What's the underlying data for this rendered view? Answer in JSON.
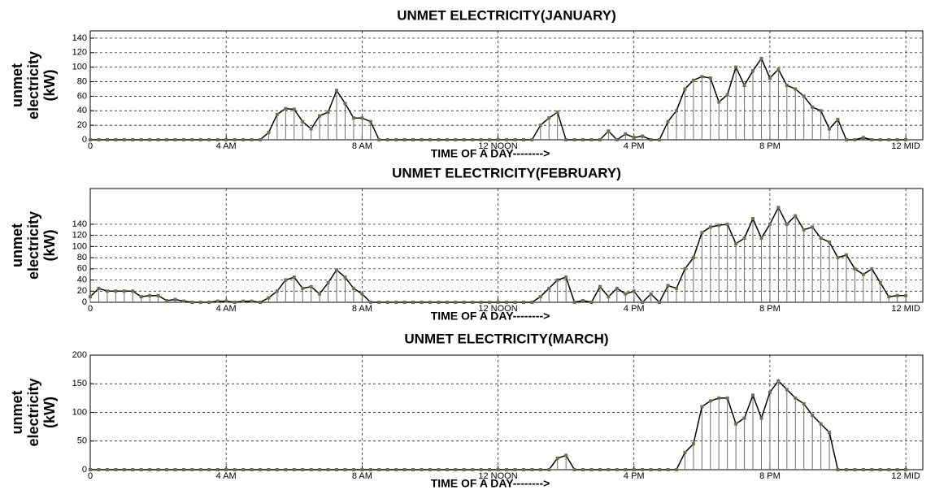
{
  "chart_data": [
    {
      "type": "stem",
      "title": "UNMET ELECTRICITY(JANUARY)",
      "xlabel": "TIME OF A DAY-------->",
      "ylabel": [
        "unmet",
        "electricity",
        "(kW)"
      ],
      "x": [
        0,
        0.25,
        0.5,
        0.75,
        1,
        1.25,
        1.5,
        1.75,
        2,
        2.25,
        2.5,
        2.75,
        3,
        3.25,
        3.5,
        3.75,
        4,
        4.25,
        4.5,
        4.75,
        5,
        5.25,
        5.5,
        5.75,
        6,
        6.25,
        6.5,
        6.75,
        7,
        7.25,
        7.5,
        7.75,
        8,
        8.25,
        8.5,
        8.75,
        9,
        9.25,
        9.5,
        9.75,
        10,
        10.25,
        10.5,
        10.75,
        11,
        11.25,
        11.5,
        11.75,
        12,
        12.25,
        12.5,
        12.75,
        13,
        13.25,
        13.5,
        13.75,
        14,
        14.25,
        14.5,
        14.75,
        15,
        15.25,
        15.5,
        15.75,
        16,
        16.25,
        16.5,
        16.75,
        17,
        17.25,
        17.5,
        17.75,
        18,
        18.25,
        18.5,
        18.75,
        19,
        19.25,
        19.5,
        19.75,
        20,
        20.25,
        20.5,
        20.75,
        21,
        21.25,
        21.5,
        21.75,
        22,
        22.25,
        22.5,
        22.75,
        23,
        23.25,
        23.5,
        23.75,
        24
      ],
      "values": [
        0,
        0,
        0,
        0,
        0,
        0,
        0,
        0,
        0,
        0,
        0,
        0,
        0,
        0,
        0,
        0,
        0,
        0,
        0,
        0,
        0,
        10,
        35,
        43,
        42,
        25,
        15,
        33,
        38,
        68,
        50,
        30,
        30,
        25,
        0,
        0,
        0,
        0,
        0,
        0,
        0,
        0,
        0,
        0,
        0,
        0,
        0,
        0,
        0,
        0,
        0,
        0,
        0,
        20,
        30,
        38,
        0,
        0,
        0,
        0,
        0,
        12,
        0,
        8,
        3,
        5,
        0,
        0,
        25,
        40,
        70,
        82,
        87,
        85,
        52,
        62,
        100,
        75,
        95,
        112,
        85,
        97,
        75,
        70,
        60,
        45,
        40,
        15,
        28,
        0,
        0,
        3,
        0,
        0,
        0,
        0,
        0
      ],
      "color": "#000000",
      "marker_color": "#6e6e50",
      "stem_color": "#6e6e6e",
      "xlim": [
        0,
        24.5
      ],
      "xticks": [
        0,
        {
          "value": 4,
          "label": "4 AM"
        },
        {
          "value": 8,
          "label": "8 AM"
        },
        {
          "value": 12,
          "label": "12 NOON"
        },
        {
          "value": 16,
          "label": "4 PM"
        },
        {
          "value": 20,
          "label": "8 PM"
        },
        {
          "value": 24,
          "label": "12 MID"
        }
      ],
      "ylim": [
        0,
        150
      ],
      "yticks": [
        0,
        20,
        40,
        60,
        80,
        100,
        120,
        140
      ],
      "grid": true
    },
    {
      "type": "stem",
      "title": "UNMET ELECTRICITY(FEBRUARY)",
      "xlabel": "TIME OF A DAY-------->",
      "ylabel": [
        "unmet",
        "electricity",
        "(kW)"
      ],
      "x": [
        0,
        0.25,
        0.5,
        0.75,
        1,
        1.25,
        1.5,
        1.75,
        2,
        2.25,
        2.5,
        2.75,
        3,
        3.25,
        3.5,
        3.75,
        4,
        4.25,
        4.5,
        4.75,
        5,
        5.25,
        5.5,
        5.75,
        6,
        6.25,
        6.5,
        6.75,
        7,
        7.25,
        7.5,
        7.75,
        8,
        8.25,
        8.5,
        8.75,
        9,
        9.25,
        9.5,
        9.75,
        10,
        10.25,
        10.5,
        10.75,
        11,
        11.25,
        11.5,
        11.75,
        12,
        12.25,
        12.5,
        12.75,
        13,
        13.25,
        13.5,
        13.75,
        14,
        14.25,
        14.5,
        14.75,
        15,
        15.25,
        15.5,
        15.75,
        16,
        16.25,
        16.5,
        16.75,
        17,
        17.25,
        17.5,
        17.75,
        18,
        18.25,
        18.5,
        18.75,
        19,
        19.25,
        19.5,
        19.75,
        20,
        20.25,
        20.5,
        20.75,
        21,
        21.25,
        21.5,
        21.75,
        22,
        22.25,
        22.5,
        22.75,
        23,
        23.25,
        23.5,
        23.75,
        24
      ],
      "values": [
        10,
        25,
        20,
        20,
        20,
        20,
        10,
        12,
        12,
        3,
        5,
        2,
        0,
        0,
        0,
        2,
        2,
        0,
        2,
        2,
        0,
        8,
        20,
        40,
        45,
        25,
        28,
        15,
        35,
        58,
        45,
        25,
        15,
        0,
        0,
        0,
        0,
        0,
        0,
        0,
        0,
        0,
        0,
        0,
        0,
        0,
        0,
        0,
        0,
        0,
        0,
        0,
        0,
        10,
        25,
        40,
        45,
        0,
        3,
        0,
        28,
        10,
        25,
        15,
        20,
        0,
        15,
        0,
        30,
        25,
        60,
        80,
        125,
        135,
        138,
        140,
        105,
        115,
        150,
        115,
        140,
        170,
        140,
        155,
        130,
        135,
        115,
        108,
        80,
        85,
        60,
        50,
        60,
        35,
        10,
        12,
        12
      ],
      "color": "#000000",
      "marker_color": "#6e6e50",
      "stem_color": "#6e6e6e",
      "xlim": [
        0,
        24.5
      ],
      "xticks": [
        0,
        {
          "value": 4,
          "label": "4 AM"
        },
        {
          "value": 8,
          "label": "8 AM"
        },
        {
          "value": 12,
          "label": "12 NOON"
        },
        {
          "value": 16,
          "label": "4 PM"
        },
        {
          "value": 20,
          "label": "8 PM"
        },
        {
          "value": 24,
          "label": "12 MID"
        }
      ],
      "ylim": [
        0,
        204
      ],
      "yticks": [
        0,
        20,
        40,
        60,
        80,
        100,
        120,
        140
      ],
      "grid": true
    },
    {
      "type": "stem",
      "title": "UNMET ELECTRICITY(MARCH)",
      "xlabel": "TIME OF A DAY-------->",
      "ylabel": [
        "unmet",
        "electricity",
        "(kW)"
      ],
      "x": [
        0,
        0.25,
        0.5,
        0.75,
        1,
        1.25,
        1.5,
        1.75,
        2,
        2.25,
        2.5,
        2.75,
        3,
        3.25,
        3.5,
        3.75,
        4,
        4.25,
        4.5,
        4.75,
        5,
        5.25,
        5.5,
        5.75,
        6,
        6.25,
        6.5,
        6.75,
        7,
        7.25,
        7.5,
        7.75,
        8,
        8.25,
        8.5,
        8.75,
        9,
        9.25,
        9.5,
        9.75,
        10,
        10.25,
        10.5,
        10.75,
        11,
        11.25,
        11.5,
        11.75,
        12,
        12.25,
        12.5,
        12.75,
        13,
        13.25,
        13.5,
        13.75,
        14,
        14.25,
        14.5,
        14.75,
        15,
        15.25,
        15.5,
        15.75,
        16,
        16.25,
        16.5,
        16.75,
        17,
        17.25,
        17.5,
        17.75,
        18,
        18.25,
        18.5,
        18.75,
        19,
        19.25,
        19.5,
        19.75,
        20,
        20.25,
        20.5,
        20.75,
        21,
        21.25,
        21.5,
        21.75,
        22,
        22.25,
        22.5,
        22.75,
        23,
        23.25,
        23.5,
        23.75,
        24
      ],
      "values": [
        0,
        0,
        0,
        0,
        0,
        0,
        0,
        0,
        0,
        0,
        0,
        0,
        0,
        0,
        0,
        0,
        0,
        0,
        0,
        0,
        0,
        0,
        0,
        0,
        0,
        0,
        0,
        0,
        0,
        0,
        0,
        0,
        0,
        0,
        0,
        0,
        0,
        0,
        0,
        0,
        0,
        0,
        0,
        0,
        0,
        0,
        0,
        0,
        0,
        0,
        0,
        0,
        0,
        0,
        0,
        20,
        25,
        0,
        0,
        0,
        0,
        0,
        0,
        0,
        0,
        0,
        0,
        0,
        0,
        0,
        30,
        45,
        110,
        120,
        125,
        125,
        80,
        90,
        130,
        90,
        135,
        155,
        140,
        125,
        115,
        95,
        80,
        65,
        0,
        0,
        0,
        0,
        0,
        0,
        0,
        0,
        0
      ],
      "color": "#000000",
      "marker_color": "#6e6e50",
      "stem_color": "#6e6e6e",
      "xlim": [
        0,
        24.5
      ],
      "xticks": [
        0,
        {
          "value": 4,
          "label": "4 AM"
        },
        {
          "value": 8,
          "label": "8 AM"
        },
        {
          "value": 12,
          "label": "12 NOON"
        },
        {
          "value": 16,
          "label": "4 PM"
        },
        {
          "value": 20,
          "label": "8 PM"
        },
        {
          "value": 24,
          "label": "12 MID"
        }
      ],
      "ylim": [
        0,
        200
      ],
      "yticks": [
        0,
        50,
        100,
        150,
        200
      ],
      "grid": true
    }
  ]
}
